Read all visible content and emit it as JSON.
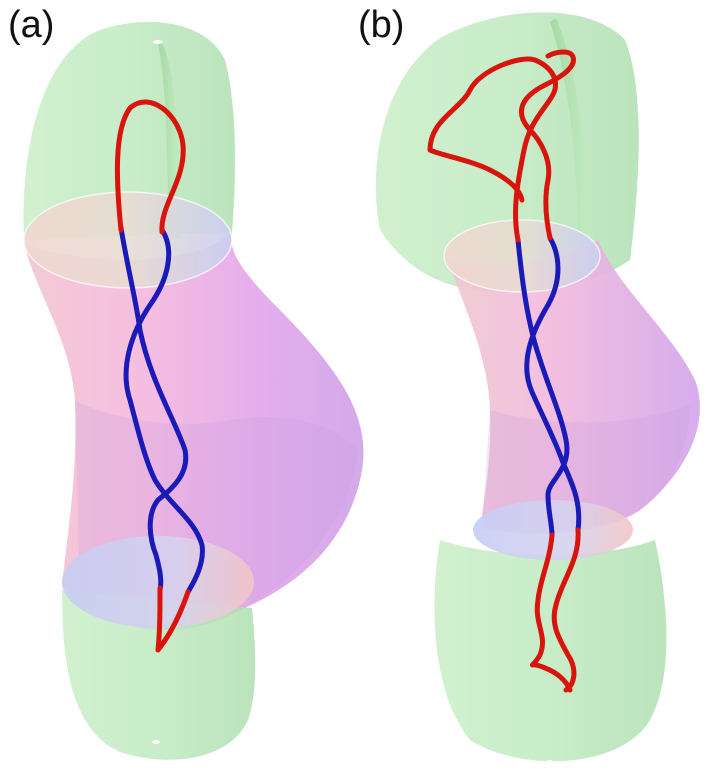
{
  "panels": [
    {
      "label": "(a)"
    },
    {
      "label": "(b)"
    }
  ],
  "colors": {
    "outer_region": "#b8e8b8",
    "middle_region": "#e6a8e6",
    "interface_disc": "#c8d0f0",
    "strand_outer": "#d8140c",
    "strand_inner": "#1a1ab8"
  }
}
